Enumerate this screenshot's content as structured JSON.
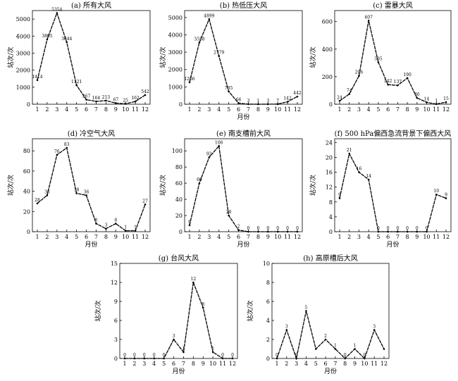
{
  "chart_data": [
    {
      "type": "line",
      "title": "(a) 所有大风",
      "xlabel": "",
      "ylabel": "站次/次",
      "x": [
        1,
        2,
        3,
        4,
        5,
        6,
        7,
        8,
        9,
        10,
        11,
        12
      ],
      "values": [
        1414,
        3805,
        5354,
        3644,
        1121,
        267,
        164,
        213,
        67,
        25,
        162,
        542
      ],
      "labels": [
        "1414",
        "3805",
        "5354",
        "3644",
        "1121",
        "267",
        "164",
        "213",
        "67",
        "25",
        "162",
        "542"
      ],
      "ylim": [
        0,
        5500
      ],
      "yticks": [
        0,
        1000,
        2000,
        3000,
        4000,
        5000
      ]
    },
    {
      "type": "line",
      "title": "(b) 热低压大风",
      "xlabel": "月份",
      "ylabel": "站次/次",
      "x": [
        1,
        2,
        3,
        4,
        5,
        6,
        7,
        8,
        9,
        10,
        11,
        12
      ],
      "values": [
        1266,
        3558,
        4899,
        2779,
        735,
        66,
        3,
        1,
        3,
        7,
        142,
        442
      ],
      "labels": [
        "1266",
        "3558",
        "4899",
        "2779",
        "735",
        "66",
        "3",
        "1",
        "3",
        "7",
        "142",
        "442"
      ],
      "ylim": [
        0,
        5400
      ],
      "yticks": [
        0,
        1000,
        2000,
        3000,
        4000,
        5000
      ]
    },
    {
      "type": "line",
      "title": "(c) 雷暴大风",
      "xlabel": "",
      "ylabel": "站次/次",
      "x": [
        1,
        2,
        3,
        4,
        5,
        6,
        7,
        8,
        9,
        10,
        11,
        12
      ],
      "values": [
        24,
        74,
        206,
        607,
        305,
        142,
        137,
        190,
        46,
        14,
        1,
        15
      ],
      "labels": [
        "24",
        "74",
        "206",
        "607",
        "305",
        "142",
        "137",
        "190",
        "46",
        "14",
        "1",
        "15"
      ],
      "ylim": [
        0,
        680
      ],
      "yticks": [
        0,
        200,
        400,
        600
      ]
    },
    {
      "type": "line",
      "title": "(d) 冷空气大风",
      "xlabel": "月份",
      "ylabel": "站次/次",
      "x": [
        1,
        2,
        3,
        4,
        5,
        6,
        7,
        8,
        9,
        10,
        11,
        12
      ],
      "values": [
        28,
        36,
        76,
        83,
        38,
        36,
        8,
        3,
        8,
        1,
        1,
        27
      ],
      "labels": [
        "28",
        "36",
        "76",
        "83",
        "38",
        "36",
        "8",
        "3",
        "8",
        "1",
        "1",
        "27"
      ],
      "ylim": [
        0,
        92
      ],
      "yticks": [
        0,
        20,
        40,
        60,
        80
      ]
    },
    {
      "type": "line",
      "title": "(e) 南支槽前大风",
      "xlabel": "月份",
      "ylabel": "站次/次",
      "x": [
        1,
        2,
        3,
        4,
        5,
        6,
        7,
        8,
        9,
        10,
        11,
        12
      ],
      "values": [
        8,
        60,
        92,
        106,
        20,
        2,
        0,
        0,
        0,
        0,
        0,
        0
      ],
      "labels": [
        "8",
        "60",
        "92",
        "106",
        "20",
        "2",
        "0",
        "0",
        "0",
        "0",
        "0",
        "0"
      ],
      "ylim": [
        0,
        115
      ],
      "yticks": [
        0,
        20,
        40,
        60,
        80,
        100
      ]
    },
    {
      "type": "line",
      "title": "(f) 500 hPa偏西急流背景下偏西大风",
      "xlabel": "月份",
      "ylabel": "站次/次",
      "x": [
        1,
        2,
        3,
        4,
        5,
        6,
        7,
        8,
        9,
        10,
        11,
        12
      ],
      "values": [
        9,
        21,
        16,
        14,
        0,
        0,
        0,
        0,
        0,
        0,
        10,
        9
      ],
      "labels": [
        "9",
        "21",
        "16",
        "14",
        "0",
        "0",
        "0",
        "0",
        "0",
        "0",
        "10",
        "9"
      ],
      "ylim": [
        0,
        25
      ],
      "yticks": [
        0,
        4,
        8,
        12,
        16,
        20,
        24
      ]
    },
    {
      "type": "line",
      "title": "(g) 台风大风",
      "xlabel": "月份",
      "ylabel": "站次/次",
      "x": [
        1,
        2,
        3,
        4,
        5,
        6,
        7,
        8,
        9,
        10,
        11,
        12
      ],
      "values": [
        0,
        0,
        0,
        0,
        0,
        3,
        1,
        12,
        8,
        1,
        0,
        0
      ],
      "labels": [
        "0",
        "0",
        "0",
        "0",
        "0",
        "3",
        "1",
        "12",
        "8",
        "1",
        "0",
        "0"
      ],
      "ylim": [
        0,
        15
      ],
      "yticks": [
        0,
        3,
        6,
        9,
        12,
        15
      ]
    },
    {
      "type": "line",
      "title": "(h) 高原槽后大风",
      "xlabel": "月份",
      "ylabel": "站次/次",
      "x": [
        1,
        2,
        3,
        4,
        5,
        6,
        7,
        8,
        9,
        10,
        11,
        12
      ],
      "values": [
        0,
        3,
        0,
        5,
        1,
        2,
        1,
        0,
        1,
        0,
        3,
        1
      ],
      "labels": [
        "0",
        "3",
        "0",
        "5",
        "",
        "2",
        "1",
        "0",
        "1",
        "0",
        "3",
        ""
      ],
      "ylim": [
        0,
        10
      ],
      "yticks": [
        0,
        2,
        4,
        6,
        8,
        10
      ]
    }
  ]
}
